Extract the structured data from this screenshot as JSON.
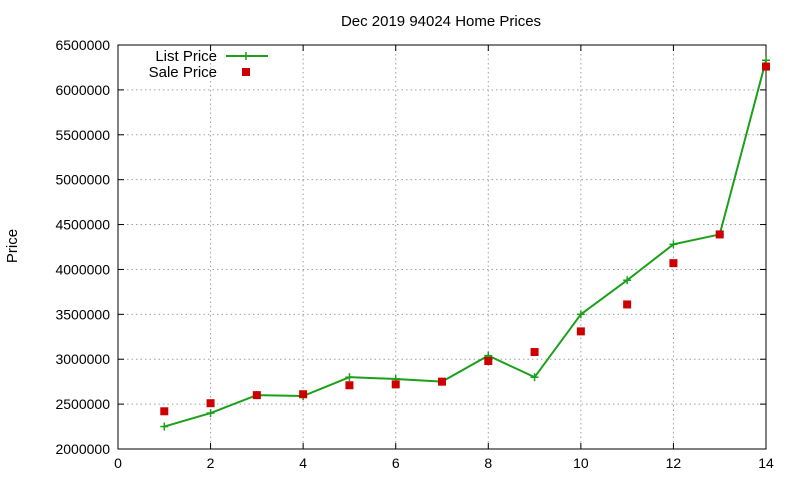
{
  "chart_data": {
    "type": "line",
    "title": "Dec 2019 94024 Home Prices",
    "xlabel": "",
    "ylabel": "Price",
    "xlim": [
      0,
      14
    ],
    "ylim": [
      2000000,
      6500000
    ],
    "xticks": [
      0,
      2,
      4,
      6,
      8,
      10,
      12,
      14
    ],
    "yticks": [
      2000000,
      2500000,
      3000000,
      3500000,
      4000000,
      4500000,
      5000000,
      5500000,
      6000000,
      6500000
    ],
    "grid": true,
    "legend_position": "top-left",
    "series": [
      {
        "name": "List Price",
        "style": "linespoints",
        "marker": "plus",
        "color": "#1aa01a",
        "x": [
          1,
          2,
          3,
          4,
          5,
          6,
          7,
          8,
          9,
          10,
          11,
          12,
          13,
          14
        ],
        "values": [
          2250000,
          2400000,
          2600000,
          2590000,
          2800000,
          2780000,
          2750000,
          3040000,
          2800000,
          3500000,
          3880000,
          4280000,
          4390000,
          6330000
        ]
      },
      {
        "name": "Sale Price",
        "style": "points",
        "marker": "square",
        "color": "#cc0000",
        "x": [
          1,
          2,
          3,
          4,
          5,
          6,
          7,
          8,
          9,
          10,
          11,
          12,
          13,
          14
        ],
        "values": [
          2420000,
          2510000,
          2600000,
          2610000,
          2710000,
          2720000,
          2750000,
          2980000,
          3080000,
          3310000,
          3610000,
          4070000,
          4390000,
          6260000
        ]
      }
    ]
  }
}
